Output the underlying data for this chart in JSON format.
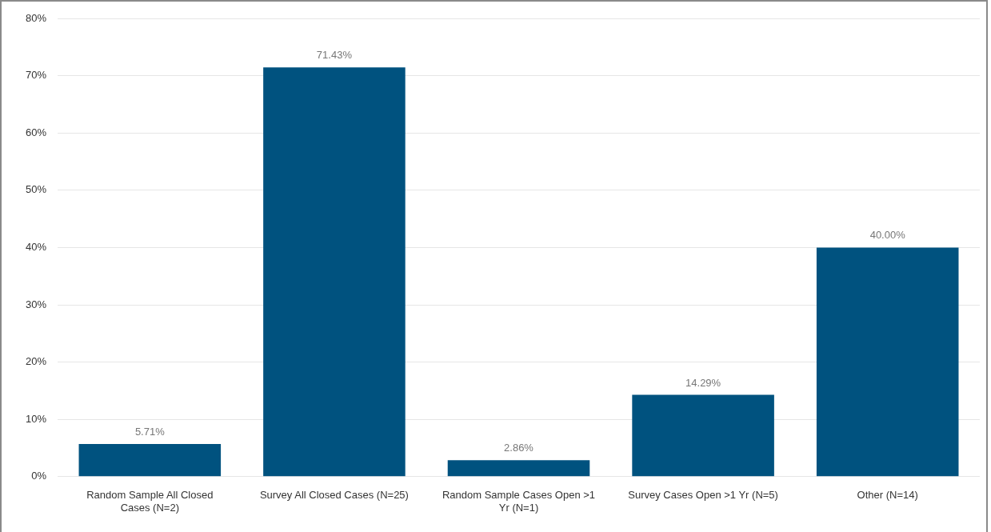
{
  "chart_data": {
    "type": "bar",
    "categories": [
      "Random Sample All Closed Cases (N=2)",
      "Survey All Closed Cases (N=25)",
      "Random Sample Cases Open >1 Yr (N=1)",
      "Survey Cases Open >1 Yr (N=5)",
      "Other (N=14)"
    ],
    "values": [
      5.71,
      71.43,
      2.86,
      14.29,
      40.0
    ],
    "value_labels": [
      "5.71%",
      "71.43%",
      "2.86%",
      "14.29%",
      "40.00%"
    ],
    "color": "#00527f",
    "ylim": [
      0,
      80
    ],
    "yticks": [
      {
        "value": 0,
        "label": "0%"
      },
      {
        "value": 10,
        "label": "10%"
      },
      {
        "value": 20,
        "label": "20%"
      },
      {
        "value": 30,
        "label": "30%"
      },
      {
        "value": 40,
        "label": "40%"
      },
      {
        "value": 50,
        "label": "50%"
      },
      {
        "value": 60,
        "label": "60%"
      },
      {
        "value": 70,
        "label": "70%"
      },
      {
        "value": 80,
        "label": "80%"
      }
    ],
    "grid": "y",
    "legend": false
  }
}
